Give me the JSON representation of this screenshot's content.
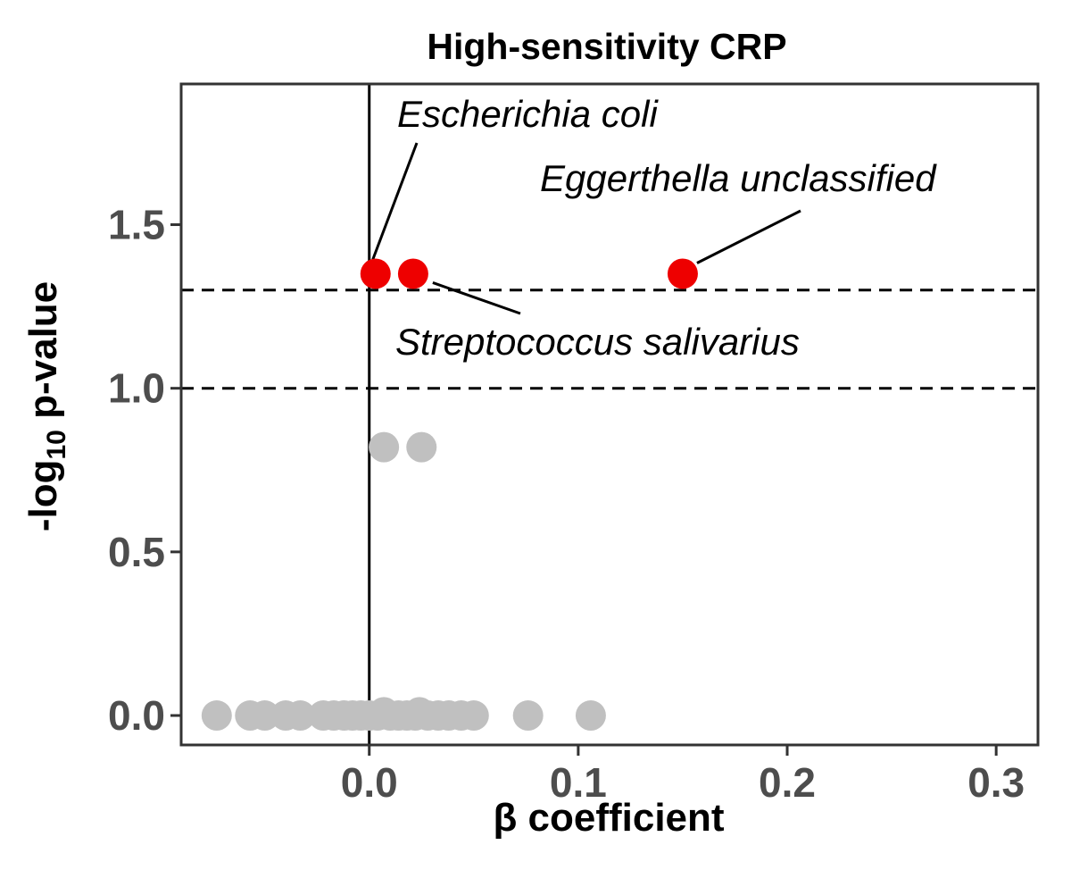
{
  "chart_data": {
    "type": "scatter",
    "title": "High-sensitivity CRP",
    "xlabel": "β coefficient",
    "ylabel_prefix": "-log",
    "ylabel_sub": "10",
    "ylabel_suffix": " p-value",
    "xlim": [
      -0.09,
      0.32
    ],
    "ylim": [
      -0.09,
      1.93
    ],
    "xticks": [
      0.0,
      0.1,
      0.2,
      0.3
    ],
    "xtick_labels": [
      "0.0",
      "0.1",
      "0.2",
      "0.3"
    ],
    "yticks": [
      0.0,
      0.5,
      1.0,
      1.5
    ],
    "ytick_labels": [
      "0.0",
      "0.5",
      "1.0",
      "1.5"
    ],
    "vline_x": 0.0,
    "hlines_y": [
      1.0,
      1.3
    ],
    "colors": {
      "significant": "#ee0000",
      "nonsignificant": "#c0c0c0",
      "axis": "#333333"
    },
    "significant_points": [
      {
        "x": 0.003,
        "y": 1.35,
        "label": "Escherichia coli"
      },
      {
        "x": 0.021,
        "y": 1.35,
        "label": "Streptococcus salivarius"
      },
      {
        "x": 0.15,
        "y": 1.35,
        "label": "Eggerthella unclassified"
      }
    ],
    "nonsignificant_points": [
      {
        "x": 0.007,
        "y": 0.82
      },
      {
        "x": 0.025,
        "y": 0.82
      },
      {
        "x": -0.073,
        "y": 0.0
      },
      {
        "x": -0.057,
        "y": 0.0
      },
      {
        "x": -0.05,
        "y": 0.0
      },
      {
        "x": -0.04,
        "y": 0.0
      },
      {
        "x": -0.033,
        "y": 0.0
      },
      {
        "x": -0.022,
        "y": 0.0
      },
      {
        "x": -0.017,
        "y": 0.0
      },
      {
        "x": -0.012,
        "y": 0.0
      },
      {
        "x": -0.008,
        "y": 0.0
      },
      {
        "x": -0.004,
        "y": 0.0
      },
      {
        "x": 0.0,
        "y": 0.0
      },
      {
        "x": 0.004,
        "y": 0.0
      },
      {
        "x": 0.007,
        "y": 0.01
      },
      {
        "x": 0.01,
        "y": 0.0
      },
      {
        "x": 0.014,
        "y": 0.0
      },
      {
        "x": 0.018,
        "y": 0.0
      },
      {
        "x": 0.022,
        "y": 0.0
      },
      {
        "x": 0.024,
        "y": 0.01
      },
      {
        "x": 0.028,
        "y": 0.0
      },
      {
        "x": 0.033,
        "y": 0.0
      },
      {
        "x": 0.038,
        "y": 0.0
      },
      {
        "x": 0.044,
        "y": 0.0
      },
      {
        "x": 0.05,
        "y": 0.0
      },
      {
        "x": 0.076,
        "y": 0.0
      },
      {
        "x": 0.106,
        "y": 0.0
      }
    ]
  }
}
